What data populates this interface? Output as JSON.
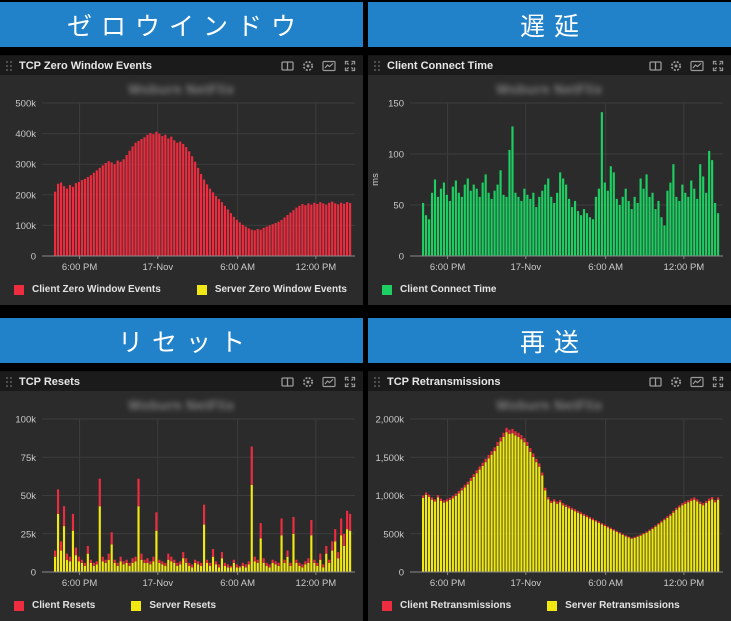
{
  "colors": {
    "banner_blue": "#2182ca",
    "page_bg": "#000000",
    "panel_bg": "#2b2b2b",
    "header_bg": "#1b1b1b",
    "grid_line": "#3d3d3d",
    "axis_line": "#8a8a8a",
    "client_red": "#ed2d3f",
    "server_yellow": "#efe812",
    "connect_green": "#1dcf62",
    "icon_gray": "#9a9a9a"
  },
  "panels": [
    {
      "banner": "ゼロウインドウ",
      "title": "TCP Zero Window Events",
      "watermark": "Woburn NetFlix",
      "legend": [
        {
          "label": "Client Zero Window Events",
          "color": "#ed2d3f"
        },
        {
          "label": "Server Zero Window Events",
          "color": "#efe812"
        }
      ]
    },
    {
      "banner": "遅延",
      "title": "Client Connect Time",
      "watermark": "Woburn NetFlix",
      "legend": [
        {
          "label": "Client Connect Time",
          "color": "#1dcf62"
        }
      ]
    },
    {
      "banner": "リセット",
      "title": "TCP Resets",
      "watermark": "Woburn NetFlix",
      "legend": [
        {
          "label": "Client Resets",
          "color": "#ed2d3f"
        },
        {
          "label": "Server Resets",
          "color": "#efe812"
        }
      ]
    },
    {
      "banner": "再送",
      "title": "TCP Retransmissions",
      "watermark": "Woburn NetFlix",
      "legend": [
        {
          "label": "Client Retransmissions",
          "color": "#ed2d3f"
        },
        {
          "label": "Server Retransmissions",
          "color": "#efe812"
        }
      ]
    }
  ],
  "chart_data": [
    {
      "type": "bar",
      "title": "TCP Zero Window Events",
      "ylabel": "",
      "ymax": 500,
      "yticks": [
        {
          "v": 500,
          "label": "500k"
        },
        {
          "v": 400,
          "label": "400k"
        },
        {
          "v": 300,
          "label": "300k"
        },
        {
          "v": 200,
          "label": "200k"
        },
        {
          "v": 100,
          "label": "100k"
        },
        {
          "v": 0,
          "label": "0"
        }
      ],
      "xticks": [
        {
          "f": 0.12,
          "label": "6:00 PM"
        },
        {
          "f": 0.37,
          "label": "17-Nov"
        },
        {
          "f": 0.625,
          "label": "6:00 AM"
        },
        {
          "f": 0.875,
          "label": "12:00 PM"
        }
      ],
      "series": [
        {
          "name": "Client Zero Window Events",
          "color": "#ed2d3f",
          "values": [
            210,
            236,
            240,
            228,
            220,
            232,
            226,
            238,
            242,
            248,
            252,
            258,
            264,
            272,
            280,
            288,
            296,
            304,
            310,
            306,
            300,
            312,
            308,
            316,
            330,
            344,
            358,
            370,
            376,
            382,
            388,
            396,
            402,
            398,
            406,
            400,
            392,
            396,
            384,
            390,
            378,
            370,
            374,
            366,
            356,
            342,
            326,
            308,
            288,
            268,
            250,
            234,
            220,
            208,
            196,
            186,
            176,
            164,
            152,
            140,
            128,
            118,
            110,
            102,
            96,
            90,
            86,
            84,
            88,
            86,
            92,
            96,
            100,
            104,
            108,
            112,
            118,
            126,
            134,
            142,
            150,
            158,
            164,
            170,
            166,
            172,
            168,
            174,
            170,
            176,
            172,
            168,
            174,
            178,
            172,
            169,
            174,
            171,
            176,
            173
          ]
        }
      ]
    },
    {
      "type": "bar",
      "title": "Client Connect Time",
      "ylabel": "ms",
      "ymax": 150,
      "yticks": [
        {
          "v": 150,
          "label": "150"
        },
        {
          "v": 100,
          "label": "100"
        },
        {
          "v": 50,
          "label": "50"
        },
        {
          "v": 0,
          "label": "0"
        }
      ],
      "xticks": [
        {
          "f": 0.12,
          "label": "6:00 PM"
        },
        {
          "f": 0.37,
          "label": "17-Nov"
        },
        {
          "f": 0.625,
          "label": "6:00 AM"
        },
        {
          "f": 0.875,
          "label": "12:00 PM"
        }
      ],
      "series": [
        {
          "name": "Client Connect Time",
          "color": "#1dcf62",
          "values": [
            52,
            40,
            36,
            62,
            75,
            58,
            66,
            72,
            60,
            54,
            68,
            74,
            62,
            58,
            70,
            76,
            64,
            70,
            66,
            58,
            72,
            80,
            62,
            56,
            64,
            70,
            84,
            60,
            58,
            104,
            127,
            62,
            58,
            54,
            66,
            60,
            56,
            62,
            48,
            58,
            64,
            70,
            76,
            58,
            52,
            62,
            82,
            76,
            70,
            56,
            48,
            54,
            44,
            40,
            46,
            42,
            38,
            36,
            58,
            66,
            141,
            72,
            64,
            88,
            82,
            56,
            50,
            58,
            66,
            54,
            46,
            58,
            52,
            76,
            66,
            80,
            58,
            62,
            46,
            54,
            38,
            30,
            64,
            72,
            90,
            58,
            54,
            70,
            62,
            58,
            74,
            66,
            56,
            90,
            78,
            62,
            103,
            94,
            52,
            42
          ]
        }
      ]
    },
    {
      "type": "bar",
      "title": "TCP Resets",
      "ylabel": "",
      "ymax": 100,
      "yticks": [
        {
          "v": 100,
          "label": "100k"
        },
        {
          "v": 75,
          "label": "75k"
        },
        {
          "v": 50,
          "label": "50k"
        },
        {
          "v": 25,
          "label": "25k"
        },
        {
          "v": 0,
          "label": "0"
        }
      ],
      "xticks": [
        {
          "f": 0.12,
          "label": "6:00 PM"
        },
        {
          "f": 0.37,
          "label": "17-Nov"
        },
        {
          "f": 0.625,
          "label": "6:00 AM"
        },
        {
          "f": 0.875,
          "label": "12:00 PM"
        }
      ],
      "series": [
        {
          "name": "Server Resets",
          "color": "#efe812",
          "values": [
            10,
            38,
            14,
            30,
            8,
            7,
            27,
            11,
            7,
            6,
            4,
            12,
            6,
            4,
            5,
            43,
            7,
            6,
            8,
            18,
            6,
            4,
            7,
            5,
            6,
            4,
            6,
            7,
            43,
            8,
            6,
            6,
            5,
            7,
            27,
            6,
            5,
            4,
            8,
            7,
            6,
            4,
            5,
            9,
            6,
            4,
            3,
            6,
            5,
            4,
            31,
            6,
            4,
            10,
            5,
            3,
            9,
            4,
            3,
            3,
            6,
            3,
            3,
            4,
            3,
            5,
            57,
            7,
            6,
            22,
            6,
            4,
            3,
            6,
            5,
            4,
            24,
            6,
            10,
            4,
            25,
            6,
            4,
            3,
            5,
            6,
            24,
            6,
            4,
            8,
            3,
            12,
            6,
            14,
            20,
            9,
            24,
            17,
            28,
            27
          ]
        },
        {
          "name": "Client Resets",
          "color": "#ed2d3f",
          "values": [
            4,
            16,
            6,
            13,
            4,
            3,
            11,
            5,
            3,
            2,
            2,
            5,
            2,
            2,
            2,
            18,
            3,
            2,
            4,
            8,
            2,
            2,
            3,
            2,
            2,
            2,
            3,
            3,
            18,
            4,
            2,
            3,
            2,
            3,
            12,
            2,
            2,
            2,
            4,
            3,
            2,
            2,
            2,
            4,
            3,
            2,
            2,
            2,
            2,
            2,
            13,
            2,
            2,
            5,
            2,
            2,
            4,
            2,
            2,
            1,
            2,
            2,
            1,
            2,
            2,
            2,
            25,
            3,
            2,
            10,
            3,
            2,
            2,
            2,
            2,
            2,
            11,
            2,
            4,
            2,
            11,
            2,
            2,
            2,
            2,
            3,
            10,
            2,
            2,
            4,
            2,
            5,
            2,
            6,
            8,
            4,
            11,
            8,
            12,
            11
          ]
        }
      ]
    },
    {
      "type": "bar",
      "title": "TCP Retransmissions",
      "ylabel": "",
      "ymax": 2000,
      "yticks": [
        {
          "v": 2000,
          "label": "2,000k"
        },
        {
          "v": 1500,
          "label": "1,500k"
        },
        {
          "v": 1000,
          "label": "1,000k"
        },
        {
          "v": 500,
          "label": "500k"
        },
        {
          "v": 0,
          "label": "0"
        }
      ],
      "xticks": [
        {
          "f": 0.12,
          "label": "6:00 PM"
        },
        {
          "f": 0.37,
          "label": "17-Nov"
        },
        {
          "f": 0.625,
          "label": "6:00 AM"
        },
        {
          "f": 0.875,
          "label": "12:00 PM"
        }
      ],
      "series": [
        {
          "name": "Server Retransmissions",
          "color": "#efe812",
          "values": [
            970,
            1009,
            980,
            946,
            921,
            975,
            931,
            907,
            921,
            941,
            965,
            994,
            1028,
            1067,
            1106,
            1145,
            1193,
            1242,
            1290,
            1339,
            1387,
            1436,
            1484,
            1533,
            1581,
            1649,
            1707,
            1765,
            1828,
            1804,
            1814,
            1785,
            1765,
            1736,
            1697,
            1649,
            1571,
            1503,
            1436,
            1377,
            1261,
            1067,
            951,
            902,
            921,
            892,
            912,
            873,
            854,
            834,
            815,
            795,
            776,
            757,
            737,
            718,
            698,
            679,
            660,
            640,
            621,
            601,
            582,
            563,
            543,
            524,
            504,
            485,
            466,
            451,
            436,
            446,
            461,
            475,
            495,
            514,
            538,
            563,
            592,
            621,
            650,
            679,
            708,
            737,
            776,
            815,
            844,
            873,
            892,
            912,
            931,
            946,
            921,
            892,
            873,
            902,
            931,
            951,
            912,
            946
          ]
        },
        {
          "name": "Client Retransmissions",
          "color": "#ed2d3f",
          "values": [
            30,
            31,
            30,
            29,
            29,
            30,
            29,
            28,
            29,
            29,
            30,
            31,
            32,
            33,
            34,
            35,
            37,
            38,
            40,
            41,
            43,
            44,
            46,
            47,
            49,
            51,
            53,
            55,
            57,
            56,
            56,
            55,
            55,
            54,
            53,
            51,
            49,
            47,
            44,
            43,
            39,
            33,
            29,
            28,
            29,
            28,
            28,
            27,
            26,
            26,
            25,
            25,
            24,
            23,
            23,
            22,
            22,
            21,
            20,
            20,
            19,
            19,
            18,
            17,
            17,
            16,
            16,
            15,
            14,
            14,
            14,
            14,
            14,
            15,
            15,
            16,
            17,
            17,
            18,
            19,
            20,
            21,
            22,
            23,
            24,
            25,
            26,
            27,
            28,
            28,
            29,
            29,
            29,
            28,
            27,
            28,
            29,
            29,
            28,
            29
          ]
        }
      ]
    }
  ]
}
